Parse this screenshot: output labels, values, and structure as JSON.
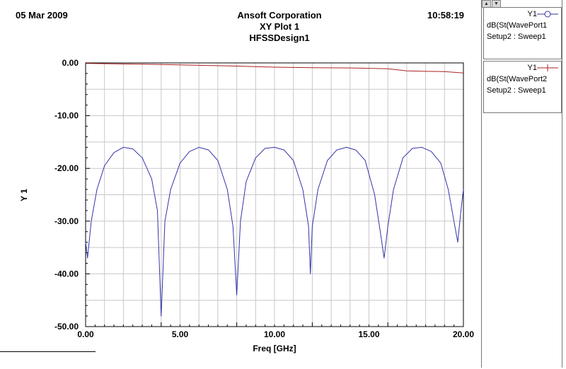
{
  "header": {
    "date": "05 Mar 2009",
    "company": "Ansoft Corporation",
    "plot_name": "XY Plot 1",
    "design": "HFSSDesign1",
    "time": "10:58:19"
  },
  "legend": {
    "entries": [
      {
        "y_label": "Y1",
        "line1": "dB(St(WavePort1",
        "line2": "Setup2 : Sweep1",
        "color": "#3333aa",
        "marker": "circle"
      },
      {
        "y_label": "Y1",
        "line1": "dB(St(WavePort2",
        "line2": "Setup2 : Sweep1",
        "color": "#aa2222",
        "marker": "plus"
      }
    ]
  },
  "chart_data": {
    "type": "line",
    "xlabel": "Freq [GHz]",
    "ylabel": "Y 1",
    "xlim": [
      0,
      20
    ],
    "ylim": [
      -50,
      0
    ],
    "x_ticks": [
      "0.00",
      "5.00",
      "10.00",
      "15.00",
      "20.00"
    ],
    "y_ticks": [
      "0.00",
      "-10.00",
      "-20.00",
      "-30.00",
      "-40.00",
      "-50.00"
    ],
    "grid": true,
    "legend_position": "right",
    "series": [
      {
        "name": "dB(St(WavePort1",
        "color": "#3333aa",
        "x": [
          0.0,
          0.1,
          0.3,
          0.6,
          1.0,
          1.5,
          2.0,
          2.5,
          3.0,
          3.5,
          3.8,
          4.0,
          4.2,
          4.5,
          5.0,
          5.5,
          6.0,
          6.5,
          7.0,
          7.5,
          7.8,
          8.0,
          8.2,
          8.5,
          9.0,
          9.5,
          10.0,
          10.5,
          11.0,
          11.5,
          11.8,
          11.9,
          12.0,
          12.3,
          12.8,
          13.3,
          13.8,
          14.3,
          14.8,
          15.3,
          15.6,
          15.8,
          16.0,
          16.3,
          16.8,
          17.3,
          17.8,
          18.3,
          18.8,
          19.2,
          19.5,
          19.7,
          19.9,
          20.0
        ],
        "y": [
          -34,
          -37,
          -30,
          -24,
          -19.5,
          -17,
          -16,
          -16.3,
          -18,
          -22,
          -28,
          -48,
          -30,
          -24,
          -19,
          -16.8,
          -16,
          -16.5,
          -18.5,
          -24,
          -31,
          -44,
          -30,
          -22.5,
          -18,
          -16.2,
          -16,
          -16.5,
          -18.5,
          -24,
          -31,
          -40,
          -31,
          -24,
          -18.5,
          -16.5,
          -16,
          -16.5,
          -18.5,
          -25,
          -32,
          -37,
          -31,
          -24,
          -18,
          -16.2,
          -16,
          -16.8,
          -19,
          -24,
          -30,
          -34,
          -27,
          -24
        ]
      },
      {
        "name": "dB(St(WavePort2",
        "color": "#aa2222",
        "x": [
          0,
          2,
          4,
          6,
          8,
          10,
          12,
          14,
          16,
          17,
          18,
          19,
          20
        ],
        "y": [
          -0.1,
          -0.2,
          -0.3,
          -0.45,
          -0.6,
          -0.8,
          -0.9,
          -0.95,
          -1.1,
          -1.5,
          -1.6,
          -1.65,
          -1.9
        ]
      }
    ]
  }
}
